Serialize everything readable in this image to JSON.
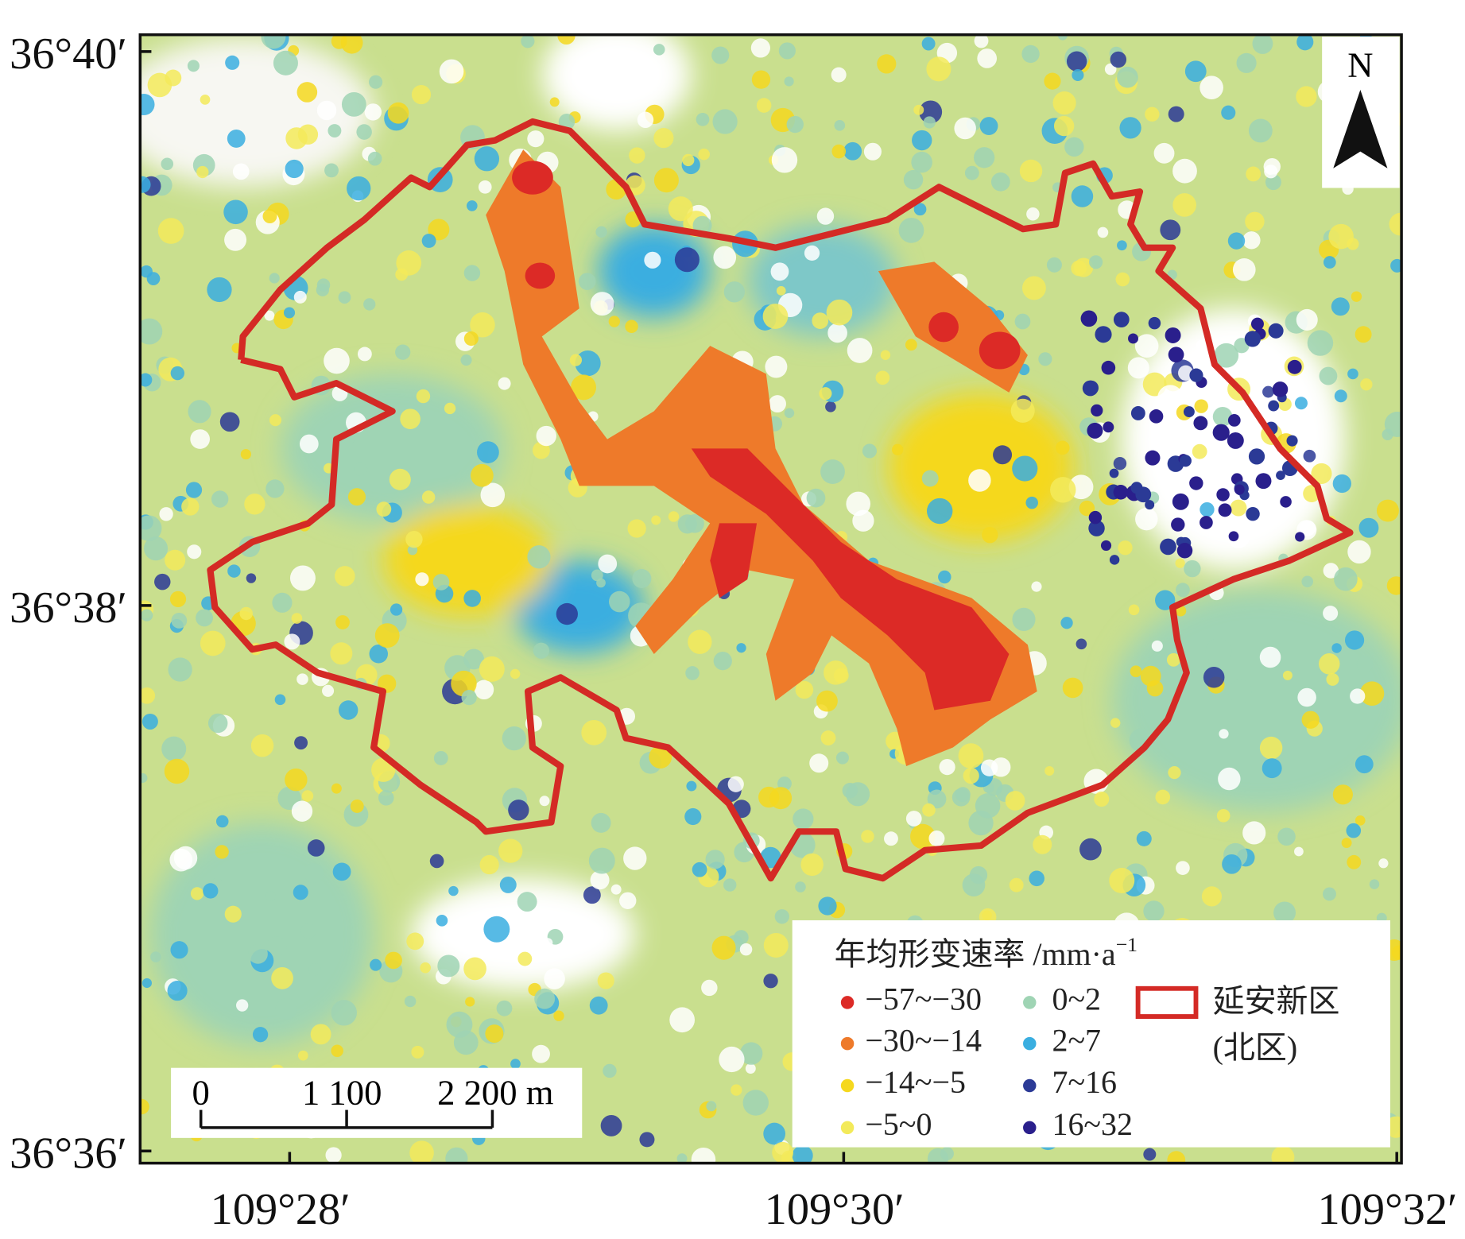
{
  "map": {
    "north": "N",
    "latitude_labels": [
      "36°40′",
      "36°38′",
      "36°36′"
    ],
    "longitude_labels": [
      "109°28′",
      "109°30′",
      "109°32′"
    ],
    "legend": {
      "title": "年均形变速率 /mm·a",
      "title_exponent": "−1",
      "classes": [
        {
          "label": "−57~−30",
          "color": "#dc2a26"
        },
        {
          "label": "−30~−14",
          "color": "#ee7a2a"
        },
        {
          "label": "−14~−5",
          "color": "#f5d81e"
        },
        {
          "label": "−5~0",
          "color": "#f3ea5a"
        },
        {
          "label": "0~2",
          "color": "#9fd4b4"
        },
        {
          "label": "2~7",
          "color": "#3aaee0"
        },
        {
          "label": "7~16",
          "color": "#2b3a96"
        },
        {
          "label": "16~32",
          "color": "#2a1f8c"
        }
      ],
      "boundary": {
        "label_lines": [
          "延安新区",
          "(北区)"
        ],
        "color": "#d42a25"
      }
    },
    "scale_bar": {
      "labels": [
        "0",
        "1 100",
        "2 200 m"
      ]
    }
  }
}
